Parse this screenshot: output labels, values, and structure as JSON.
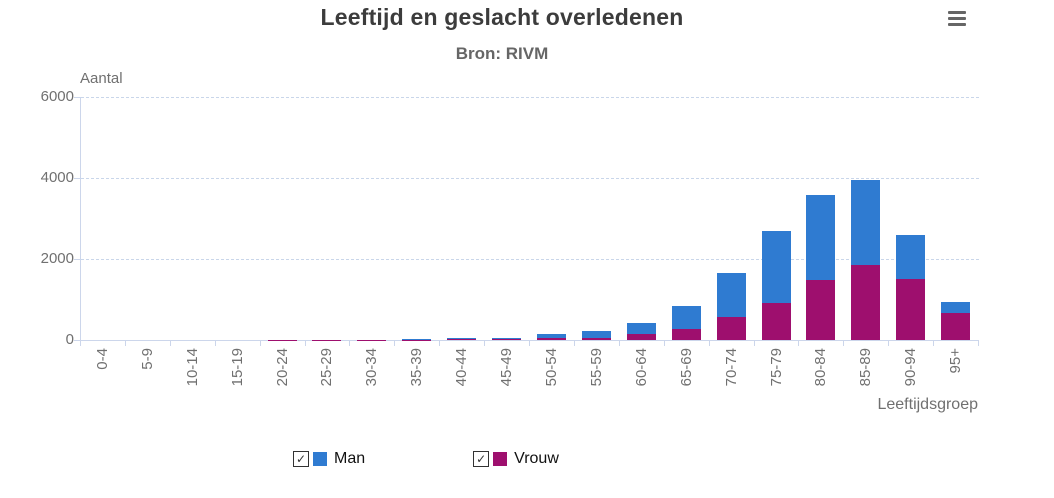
{
  "header": {
    "title": "Leeftijd en geslacht overledenen",
    "subtitle": "Bron: RIVM",
    "menu_icon": "hamburger-icon"
  },
  "chart_data": {
    "type": "bar",
    "stacked": true,
    "title": "Leeftijd en geslacht overledenen",
    "subtitle": "Bron: RIVM",
    "xlabel": "Leeftijdsgroep",
    "ylabel": "Aantal",
    "ylim": [
      0,
      6000
    ],
    "yticks": [
      0,
      2000,
      4000,
      6000
    ],
    "grid": "horizontal-dashed",
    "legend_position": "bottom",
    "categories": [
      "0-4",
      "5-9",
      "10-14",
      "15-19",
      "20-24",
      "25-29",
      "30-34",
      "35-39",
      "40-44",
      "45-49",
      "50-54",
      "55-59",
      "60-64",
      "65-69",
      "70-74",
      "75-79",
      "80-84",
      "85-89",
      "90-94",
      "95+"
    ],
    "series": [
      {
        "name": "Man",
        "color": "#2f7bd1",
        "stack_order": "top",
        "values": [
          0,
          0,
          0,
          1,
          2,
          4,
          6,
          12,
          25,
          40,
          95,
          170,
          290,
          560,
          1090,
          1770,
          2090,
          2100,
          1080,
          280
        ]
      },
      {
        "name": "Vrouw",
        "color": "#9e0f6e",
        "stack_order": "bottom",
        "values": [
          0,
          0,
          0,
          1,
          2,
          3,
          4,
          8,
          15,
          18,
          45,
          55,
          140,
          270,
          570,
          910,
          1490,
          1840,
          1510,
          670
        ]
      }
    ],
    "legend": {
      "items": [
        {
          "label": "Man",
          "checked": true,
          "color": "#2f7bd1"
        },
        {
          "label": "Vrouw",
          "checked": true,
          "color": "#9e0f6e"
        }
      ],
      "checkmark": "✓"
    },
    "colors": {
      "grid": "#c9d6ea",
      "axis": "#ccd6eb",
      "axis_text": "#707070",
      "title_text": "#3c3c3c",
      "subtitle_text": "#666666"
    }
  }
}
